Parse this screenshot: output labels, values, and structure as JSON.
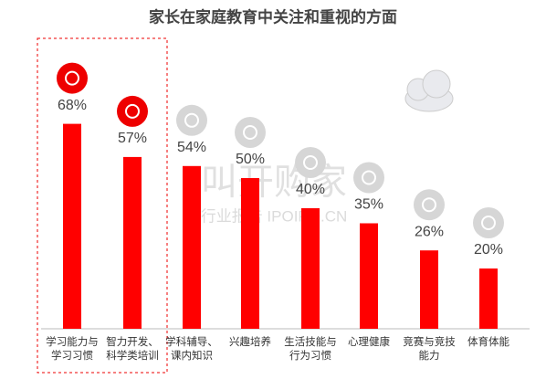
{
  "chart_data": {
    "type": "bar",
    "title": "家长在家庭教育中关注和重视的方面",
    "categories": [
      "学习能力与学习习惯",
      "智力开发、科学类培训",
      "学科辅导、课内知识",
      "兴趣培养",
      "生活技能与行为习惯",
      "心理健康",
      "竞赛与竞技能力",
      "体育体能"
    ],
    "values": [
      68,
      57,
      54,
      50,
      40,
      35,
      26,
      20
    ],
    "value_labels": [
      "68%",
      "57%",
      "54%",
      "50%",
      "40%",
      "35%",
      "26%",
      "20%"
    ],
    "color": "#ff0000",
    "annotations": [
      "叫开购家",
      "行业报告 IPOIPO.CN"
    ]
  }
}
